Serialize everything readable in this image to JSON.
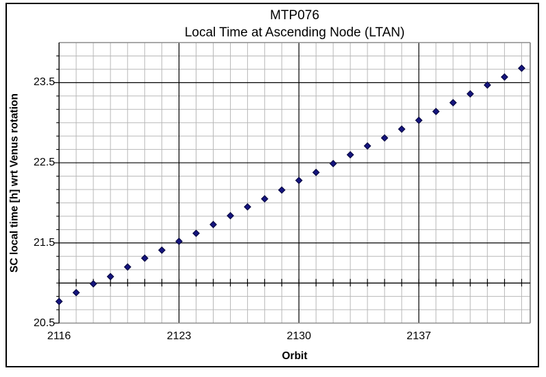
{
  "chart_data": {
    "type": "scatter",
    "title": "MTP076",
    "subtitle": "Local Time at Ascending Node (LTAN)",
    "xlabel": "Orbit",
    "ylabel": "SC local time [h] wrt Venus rotation",
    "xlim": [
      2116,
      2143.5
    ],
    "ylim": [
      20.5,
      24.0
    ],
    "x_major_ticks": [
      2116,
      2123,
      2130,
      2137
    ],
    "x_minor_step": 1,
    "y_major_ticks": [
      20.5,
      21.5,
      22.5,
      23.5
    ],
    "y_minor_divisions_per_major": 6,
    "x_axis_crosses_at_y": 21.0,
    "grid": {
      "minor_color": "#b8b8b8",
      "major_color": "#000000",
      "border_color": "#8c8c8c"
    },
    "marker": {
      "shape": "diamond",
      "fill": "#15157d",
      "edge": "#02023a",
      "size": 9
    },
    "series": [
      {
        "name": "LTAN",
        "x": [
          2116,
          2117,
          2118,
          2119,
          2120,
          2121,
          2122,
          2123,
          2124,
          2125,
          2126,
          2127,
          2128,
          2129,
          2130,
          2131,
          2132,
          2133,
          2134,
          2135,
          2136,
          2137,
          2138,
          2139,
          2140,
          2141,
          2142,
          2143
        ],
        "y": [
          20.77,
          20.88,
          20.99,
          21.08,
          21.2,
          21.31,
          21.41,
          21.52,
          21.62,
          21.73,
          21.84,
          21.95,
          22.05,
          22.16,
          22.28,
          22.38,
          22.49,
          22.6,
          22.71,
          22.81,
          22.92,
          23.03,
          23.14,
          23.25,
          23.36,
          23.47,
          23.57,
          23.68
        ]
      }
    ]
  }
}
